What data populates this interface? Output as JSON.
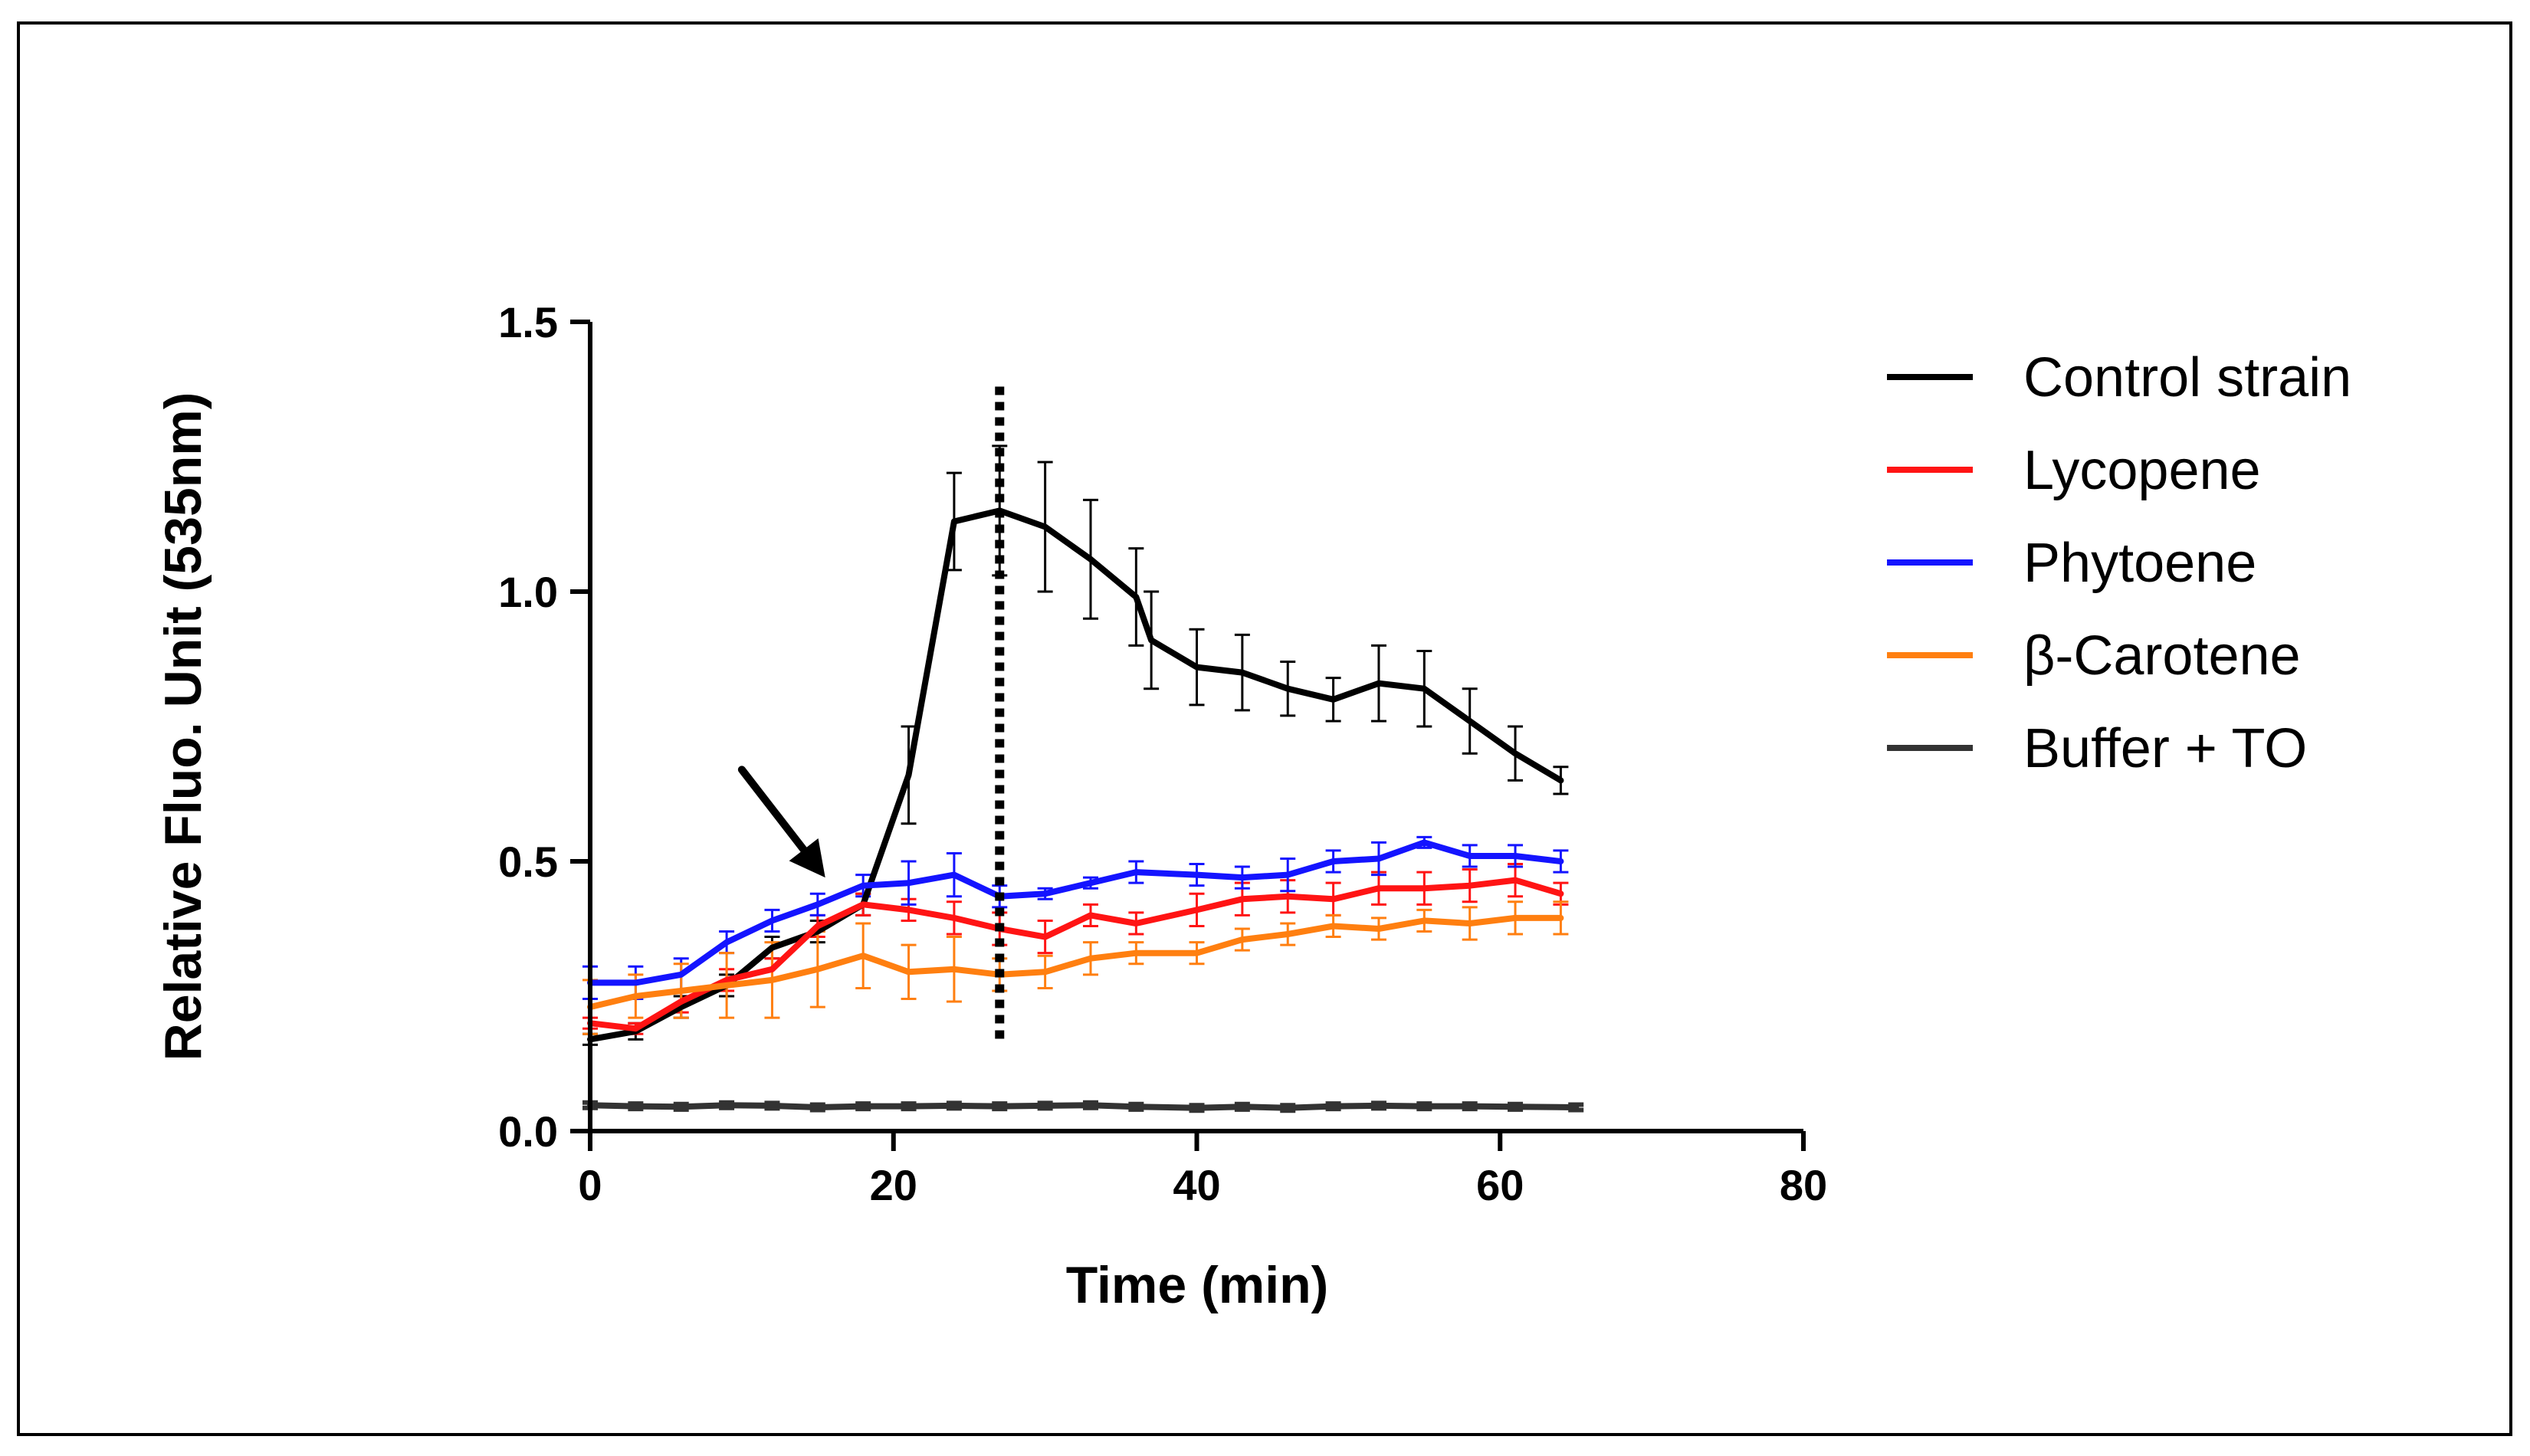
{
  "chart_data": {
    "type": "line",
    "title": "",
    "xlabel": "Time (min)",
    "ylabel": "Relative  Fluo. Unit (535nm)",
    "xlim": [
      0,
      80
    ],
    "ylim": [
      0,
      1.5
    ],
    "xticks": [
      "0",
      "20",
      "40",
      "60",
      "80"
    ],
    "yticks": [
      "0.0",
      "0.5",
      "1.0",
      "1.5"
    ],
    "grid": false,
    "legend_position": "right",
    "annotations": [
      {
        "type": "vertical-dotted-line",
        "x": 27,
        "y_from": 0.17,
        "y_to": 1.38
      },
      {
        "type": "arrow",
        "from": [
          10,
          0.67
        ],
        "to": [
          15.5,
          0.47
        ]
      }
    ],
    "series": [
      {
        "name": "Control strain",
        "color": "#000000",
        "x": [
          0,
          3,
          6,
          9,
          12,
          15,
          18,
          21,
          24,
          27,
          30,
          33,
          36,
          37,
          40,
          43,
          46,
          49,
          52,
          55,
          58,
          61,
          64
        ],
        "y": [
          0.17,
          0.185,
          0.23,
          0.27,
          0.34,
          0.37,
          0.42,
          0.66,
          1.13,
          1.15,
          1.12,
          1.06,
          0.99,
          0.91,
          0.86,
          0.85,
          0.82,
          0.8,
          0.83,
          0.82,
          0.76,
          0.7,
          0.65
        ],
        "err": [
          0.01,
          0.015,
          0.02,
          0.02,
          0.02,
          0.02,
          0.02,
          0.09,
          0.09,
          0.12,
          0.12,
          0.11,
          0.09,
          0.09,
          0.07,
          0.07,
          0.05,
          0.04,
          0.07,
          0.07,
          0.06,
          0.05,
          0.025
        ]
      },
      {
        "name": "Lycopene",
        "color": "#ff1414",
        "x": [
          0,
          3,
          6,
          9,
          12,
          15,
          18,
          21,
          24,
          27,
          30,
          33,
          36,
          40,
          43,
          46,
          49,
          52,
          55,
          58,
          61,
          64
        ],
        "y": [
          0.2,
          0.19,
          0.24,
          0.28,
          0.3,
          0.38,
          0.42,
          0.41,
          0.395,
          0.375,
          0.36,
          0.4,
          0.385,
          0.41,
          0.43,
          0.435,
          0.43,
          0.45,
          0.45,
          0.455,
          0.465,
          0.44
        ],
        "err": [
          0.01,
          0.01,
          0.02,
          0.02,
          0.02,
          0.02,
          0.02,
          0.02,
          0.03,
          0.03,
          0.03,
          0.02,
          0.02,
          0.03,
          0.03,
          0.03,
          0.03,
          0.03,
          0.03,
          0.03,
          0.03,
          0.02
        ]
      },
      {
        "name": "Phytoene",
        "color": "#1414ff",
        "x": [
          0,
          3,
          6,
          9,
          12,
          15,
          18,
          21,
          24,
          27,
          30,
          33,
          36,
          40,
          43,
          46,
          49,
          52,
          55,
          58,
          61,
          64
        ],
        "y": [
          0.275,
          0.275,
          0.29,
          0.35,
          0.39,
          0.42,
          0.455,
          0.46,
          0.475,
          0.435,
          0.44,
          0.46,
          0.48,
          0.475,
          0.47,
          0.475,
          0.5,
          0.505,
          0.535,
          0.51,
          0.51,
          0.5
        ],
        "err": [
          0.03,
          0.03,
          0.03,
          0.02,
          0.02,
          0.02,
          0.02,
          0.04,
          0.04,
          0.02,
          0.01,
          0.01,
          0.02,
          0.02,
          0.02,
          0.03,
          0.02,
          0.03,
          0.01,
          0.02,
          0.02,
          0.02
        ]
      },
      {
        "name": "β-Carotene",
        "color": "#ff7f10",
        "x": [
          0,
          3,
          6,
          9,
          12,
          15,
          18,
          21,
          24,
          27,
          30,
          33,
          36,
          40,
          43,
          46,
          49,
          52,
          55,
          58,
          61,
          64
        ],
        "y": [
          0.23,
          0.25,
          0.26,
          0.27,
          0.28,
          0.3,
          0.325,
          0.295,
          0.3,
          0.29,
          0.295,
          0.32,
          0.33,
          0.33,
          0.355,
          0.365,
          0.38,
          0.375,
          0.39,
          0.385,
          0.395,
          0.395
        ],
        "err": [
          0.05,
          0.04,
          0.05,
          0.06,
          0.07,
          0.07,
          0.06,
          0.05,
          0.06,
          0.03,
          0.03,
          0.03,
          0.02,
          0.02,
          0.02,
          0.02,
          0.02,
          0.02,
          0.02,
          0.03,
          0.03,
          0.03
        ]
      },
      {
        "name": "Buffer + TO",
        "color": "#333333",
        "x": [
          0,
          3,
          6,
          9,
          12,
          15,
          18,
          21,
          24,
          27,
          30,
          33,
          36,
          40,
          43,
          46,
          49,
          52,
          55,
          58,
          61,
          65
        ],
        "y": [
          0.048,
          0.046,
          0.045,
          0.048,
          0.047,
          0.044,
          0.046,
          0.046,
          0.047,
          0.046,
          0.047,
          0.048,
          0.045,
          0.043,
          0.045,
          0.043,
          0.046,
          0.047,
          0.046,
          0.046,
          0.045,
          0.044
        ],
        "err": [
          0.005,
          0.005,
          0.005,
          0.005,
          0.005,
          0.005,
          0.005,
          0.005,
          0.005,
          0.005,
          0.005,
          0.005,
          0.005,
          0.005,
          0.005,
          0.005,
          0.005,
          0.005,
          0.005,
          0.005,
          0.005,
          0.005
        ]
      }
    ]
  }
}
